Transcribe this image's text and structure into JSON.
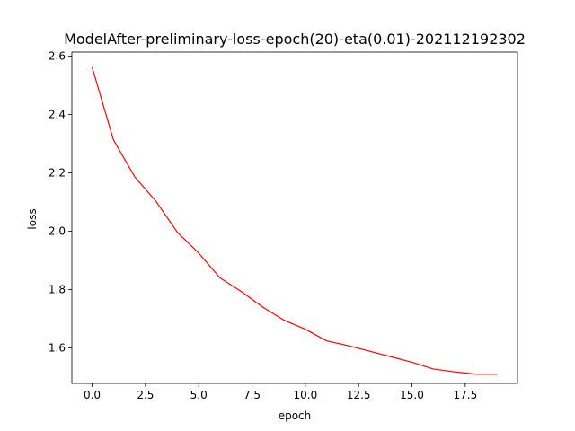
{
  "chart_data": {
    "type": "line",
    "title": "ModelAfter-preliminary-loss-epoch(20)-eta(0.01)-202112192302",
    "xlabel": "epoch",
    "ylabel": "loss",
    "xlim": [
      -0.95,
      19.95
    ],
    "ylim": [
      1.4785,
      2.6135
    ],
    "x_ticks": [
      0,
      2.5,
      5,
      7.5,
      10,
      12.5,
      15,
      17.5
    ],
    "x_tick_labels": [
      "0.0",
      "2.5",
      "5.0",
      "7.5",
      "10.0",
      "12.5",
      "15.0",
      "17.5"
    ],
    "y_ticks": [
      1.6,
      1.8,
      2.0,
      2.2,
      2.4,
      2.6
    ],
    "y_tick_labels": [
      "1.6",
      "1.8",
      "2.0",
      "2.2",
      "2.4",
      "2.6"
    ],
    "grid": false,
    "series": [
      {
        "color": "#ff0000",
        "x": [
          0,
          1,
          2,
          3,
          4,
          5,
          6,
          7,
          8,
          9,
          10,
          11,
          12,
          13,
          14,
          15,
          16,
          17,
          18,
          19
        ],
        "y": [
          2.562,
          2.313,
          2.186,
          2.102,
          1.996,
          1.925,
          1.84,
          1.793,
          1.74,
          1.695,
          1.664,
          1.624,
          1.608,
          1.589,
          1.57,
          1.551,
          1.528,
          1.518,
          1.51,
          1.51
        ]
      }
    ]
  }
}
